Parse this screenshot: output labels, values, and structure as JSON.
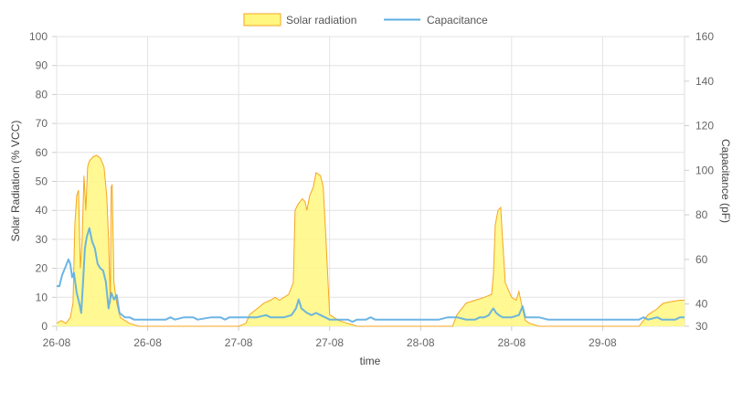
{
  "chart_data": {
    "type": "line",
    "xlabel": "time",
    "ylabel_left": "Solar Radiation (% VCC)",
    "ylabel_right": "Capacitance (pF)",
    "ylim_left": [
      0,
      100
    ],
    "ylim_right": [
      30,
      160
    ],
    "yticks_left": [
      "0",
      "10",
      "20",
      "30",
      "40",
      "50",
      "60",
      "70",
      "80",
      "90",
      "100"
    ],
    "yticks_right": [
      "30",
      "40",
      "60",
      "80",
      "100",
      "120",
      "140",
      "160"
    ],
    "x_range_hours": [
      0,
      69
    ],
    "xticks": [
      {
        "label": "26-08",
        "h": 0
      },
      {
        "label": "26-08",
        "h": 10
      },
      {
        "label": "27-08",
        "h": 20
      },
      {
        "label": "27-08",
        "h": 30
      },
      {
        "label": "28-08",
        "h": 40
      },
      {
        "label": "28-08",
        "h": 50
      },
      {
        "label": "29-08",
        "h": 60
      }
    ],
    "legend": {
      "placement": "top-center"
    },
    "colors": {
      "solar_fill": "#fff780",
      "solar_line": "#f5a623",
      "capacitance": "#5dade2"
    },
    "series": [
      {
        "name": "Solar radiation",
        "axis": "left",
        "points": [
          [
            0,
            1
          ],
          [
            0.5,
            2
          ],
          [
            1,
            1
          ],
          [
            1.5,
            3
          ],
          [
            1.8,
            8
          ],
          [
            2.0,
            35
          ],
          [
            2.2,
            45
          ],
          [
            2.4,
            47
          ],
          [
            2.6,
            20
          ],
          [
            2.8,
            30
          ],
          [
            3.0,
            52
          ],
          [
            3.2,
            40
          ],
          [
            3.4,
            55
          ],
          [
            3.6,
            57
          ],
          [
            4.0,
            58.5
          ],
          [
            4.4,
            59
          ],
          [
            4.8,
            58
          ],
          [
            5.2,
            55
          ],
          [
            5.5,
            45
          ],
          [
            5.7,
            30
          ],
          [
            5.9,
            8
          ],
          [
            6.0,
            48
          ],
          [
            6.1,
            49
          ],
          [
            6.3,
            15
          ],
          [
            6.6,
            8
          ],
          [
            7,
            3
          ],
          [
            7.5,
            2
          ],
          [
            8,
            1
          ],
          [
            9,
            0
          ],
          [
            20,
            0
          ],
          [
            20.8,
            1
          ],
          [
            21.2,
            4
          ],
          [
            22,
            6
          ],
          [
            22.8,
            8
          ],
          [
            23.5,
            9
          ],
          [
            24,
            10
          ],
          [
            24.5,
            9
          ],
          [
            25,
            10
          ],
          [
            25.5,
            11
          ],
          [
            26,
            15
          ],
          [
            26.2,
            40
          ],
          [
            26.5,
            42
          ],
          [
            27,
            44
          ],
          [
            27.3,
            43
          ],
          [
            27.5,
            40
          ],
          [
            27.8,
            45
          ],
          [
            28.2,
            48
          ],
          [
            28.5,
            53
          ],
          [
            29,
            52
          ],
          [
            29.3,
            48
          ],
          [
            29.6,
            30
          ],
          [
            30,
            4
          ],
          [
            31,
            2
          ],
          [
            32,
            1
          ],
          [
            33,
            0
          ],
          [
            43.5,
            0
          ],
          [
            44,
            4
          ],
          [
            45,
            8
          ],
          [
            46,
            9
          ],
          [
            47,
            10
          ],
          [
            47.8,
            11
          ],
          [
            48,
            18
          ],
          [
            48.2,
            35
          ],
          [
            48.5,
            40
          ],
          [
            48.8,
            41
          ],
          [
            49,
            30
          ],
          [
            49.3,
            15
          ],
          [
            50,
            10
          ],
          [
            50.5,
            9
          ],
          [
            50.8,
            12
          ],
          [
            51.2,
            6
          ],
          [
            51.5,
            2
          ],
          [
            52,
            1
          ],
          [
            53,
            0
          ],
          [
            64,
            0
          ],
          [
            64.5,
            2
          ],
          [
            65,
            4
          ],
          [
            65.5,
            5
          ],
          [
            66,
            6
          ],
          [
            66.3,
            7
          ],
          [
            66.7,
            8
          ],
          [
            67.5,
            8.5
          ],
          [
            68.5,
            9
          ],
          [
            69,
            9
          ]
        ]
      },
      {
        "name": "Capacitance",
        "axis": "right",
        "points": [
          [
            0,
            48
          ],
          [
            0.3,
            48
          ],
          [
            0.6,
            53
          ],
          [
            1,
            57
          ],
          [
            1.3,
            60
          ],
          [
            1.5,
            58
          ],
          [
            1.7,
            52
          ],
          [
            1.9,
            54
          ],
          [
            2.2,
            45
          ],
          [
            2.5,
            40
          ],
          [
            2.7,
            36
          ],
          [
            2.9,
            50
          ],
          [
            3.1,
            65
          ],
          [
            3.3,
            70
          ],
          [
            3.6,
            74
          ],
          [
            3.9,
            68
          ],
          [
            4.2,
            65
          ],
          [
            4.5,
            58
          ],
          [
            4.8,
            56
          ],
          [
            5.1,
            55
          ],
          [
            5.4,
            50
          ],
          [
            5.7,
            38
          ],
          [
            6.0,
            45
          ],
          [
            6.3,
            42
          ],
          [
            6.6,
            44
          ],
          [
            6.9,
            36
          ],
          [
            7.5,
            34
          ],
          [
            8,
            34
          ],
          [
            8.5,
            33
          ],
          [
            10,
            33
          ],
          [
            12,
            33
          ],
          [
            12.5,
            34
          ],
          [
            13,
            33
          ],
          [
            14,
            34
          ],
          [
            15,
            34
          ],
          [
            15.5,
            33
          ],
          [
            17,
            34
          ],
          [
            18,
            34
          ],
          [
            18.5,
            33
          ],
          [
            19,
            34
          ],
          [
            20,
            34
          ],
          [
            21,
            34
          ],
          [
            22,
            34
          ],
          [
            23,
            35
          ],
          [
            23.5,
            34
          ],
          [
            24,
            34
          ],
          [
            25,
            34
          ],
          [
            25.8,
            35
          ],
          [
            26.3,
            38
          ],
          [
            26.6,
            42
          ],
          [
            26.9,
            38
          ],
          [
            27.2,
            37
          ],
          [
            27.5,
            36
          ],
          [
            28,
            35
          ],
          [
            28.5,
            36
          ],
          [
            29,
            35
          ],
          [
            29.5,
            34
          ],
          [
            30,
            33
          ],
          [
            32,
            33
          ],
          [
            32.5,
            32
          ],
          [
            33,
            33
          ],
          [
            34,
            33
          ],
          [
            34.5,
            34
          ],
          [
            35,
            33
          ],
          [
            40,
            33
          ],
          [
            42,
            33
          ],
          [
            43,
            34
          ],
          [
            44,
            34
          ],
          [
            45,
            33
          ],
          [
            46,
            33
          ],
          [
            46.5,
            34
          ],
          [
            47,
            34
          ],
          [
            47.5,
            35
          ],
          [
            47.8,
            37
          ],
          [
            48,
            38
          ],
          [
            48.3,
            36
          ],
          [
            48.6,
            35
          ],
          [
            49,
            34
          ],
          [
            50,
            34
          ],
          [
            50.8,
            35
          ],
          [
            51.2,
            39
          ],
          [
            51.5,
            34
          ],
          [
            52,
            34
          ],
          [
            53,
            34
          ],
          [
            54,
            33
          ],
          [
            60,
            33
          ],
          [
            62,
            33
          ],
          [
            64,
            33
          ],
          [
            64.5,
            34
          ],
          [
            65,
            33
          ],
          [
            66,
            34
          ],
          [
            66.5,
            33
          ],
          [
            67,
            33
          ],
          [
            68,
            33
          ],
          [
            68.5,
            34
          ],
          [
            69,
            34
          ]
        ]
      }
    ]
  }
}
